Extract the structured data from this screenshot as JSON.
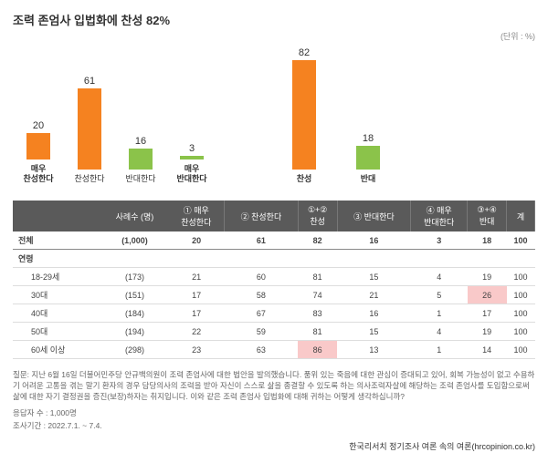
{
  "title": "조력 존엄사 입법화에 찬성 82%",
  "unit": "(단위 : %)",
  "chart": {
    "colors": {
      "agree": "#f58220",
      "disagree": "#8bc34a"
    },
    "bg": "#ffffff",
    "maxVal": 82,
    "heightPx": 120,
    "left": [
      {
        "label": "매우\n찬성한다",
        "val": 20,
        "color": "#f58220",
        "bold": true
      },
      {
        "label": "찬성한다",
        "val": 61,
        "color": "#f58220",
        "bold": false
      },
      {
        "label": "반대한다",
        "val": 16,
        "color": "#8bc34a",
        "bold": false
      },
      {
        "label": "매우\n반대한다",
        "val": 3,
        "color": "#8bc34a",
        "bold": true
      }
    ],
    "right": [
      {
        "label": "찬성",
        "val": 82,
        "color": "#f58220",
        "bold": true
      },
      {
        "label": "반대",
        "val": 18,
        "color": "#8bc34a",
        "bold": true
      }
    ]
  },
  "table": {
    "headers": [
      "",
      "사례수 (명)",
      "① 매우\n찬성한다",
      "② 찬성한다",
      "①+②\n찬성",
      "③ 반대한다",
      "④ 매우\n반대한다",
      "③+④\n반대",
      "계"
    ],
    "totalRow": {
      "label": "전체",
      "n": "(1,000)",
      "vals": [
        "20",
        "61",
        "82",
        "16",
        "3",
        "18",
        "100"
      ]
    },
    "groupLabel": "연령",
    "rows": [
      {
        "label": "18-29세",
        "n": "(173)",
        "vals": [
          "21",
          "60",
          "81",
          "15",
          "4",
          "19",
          "100"
        ],
        "hl": []
      },
      {
        "label": "30대",
        "n": "(151)",
        "vals": [
          "17",
          "58",
          "74",
          "21",
          "5",
          "26",
          "100"
        ],
        "hl": [
          5
        ]
      },
      {
        "label": "40대",
        "n": "(184)",
        "vals": [
          "17",
          "67",
          "83",
          "16",
          "1",
          "17",
          "100"
        ],
        "hl": []
      },
      {
        "label": "50대",
        "n": "(194)",
        "vals": [
          "22",
          "59",
          "81",
          "15",
          "4",
          "19",
          "100"
        ],
        "hl": []
      },
      {
        "label": "60세 이상",
        "n": "(298)",
        "vals": [
          "23",
          "63",
          "86",
          "13",
          "1",
          "14",
          "100"
        ],
        "hl": [
          2
        ]
      }
    ]
  },
  "footnote": {
    "question": "질문:   지난 6월 16일 더불어민주당 안규백의원이 조력 존엄사에 대한 법안을 발의했습니다. 품위 있는 죽음에 대한 관심이 증대되고 있어, 회복 가능성이 없고 수용하기 어려운 고통을 겪는 말기 환자의 경우 담당의사의 조력을 받아 자신이 스스로 삶을 종결할 수 있도록 하는 의사조력자살에 해당하는 조력 존엄사를 도입함으로써 삶에 대한 자기 결정권을 증진(보장)하자는 취지입니다. 이와 같은 조력 존엄사 입법화에 대해 귀하는 어떻게 생각하십니까?",
    "n": "응답자 수 : 1,000명",
    "period": "조사기간 : 2022.7.1. ~ 7.4.",
    "source": "한국리서치 정기조사 여론 속의 여론(hrcopinion.co.kr)"
  }
}
